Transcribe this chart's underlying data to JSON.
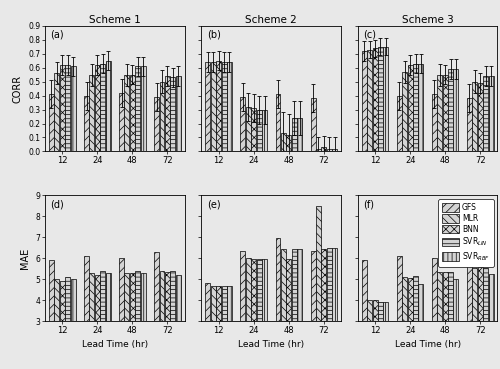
{
  "schemes": [
    "Scheme 1",
    "Scheme 2",
    "Scheme 3"
  ],
  "lead_times": [
    12,
    24,
    48,
    72
  ],
  "methods": [
    "GFS",
    "MLR",
    "BNN",
    "SVR_LIN",
    "SVR_RBF"
  ],
  "corr": {
    "scheme1": [
      [
        0.41,
        0.56,
        0.62,
        0.62,
        0.61
      ],
      [
        0.4,
        0.55,
        0.62,
        0.63,
        0.65
      ],
      [
        0.42,
        0.55,
        0.55,
        0.61,
        0.61
      ],
      [
        0.39,
        0.5,
        0.54,
        0.53,
        0.54
      ]
    ],
    "scheme2": [
      [
        0.64,
        0.64,
        0.65,
        0.64,
        0.64
      ],
      [
        0.39,
        0.32,
        0.31,
        0.3,
        0.3
      ],
      [
        0.41,
        0.13,
        0.12,
        0.24,
        0.24
      ],
      [
        0.38,
        0.02,
        0.03,
        0.02,
        0.02
      ]
    ],
    "scheme3": [
      [
        0.72,
        0.73,
        0.74,
        0.75,
        0.75
      ],
      [
        0.4,
        0.57,
        0.62,
        0.63,
        0.63
      ],
      [
        0.41,
        0.55,
        0.55,
        0.59,
        0.59
      ],
      [
        0.38,
        0.5,
        0.49,
        0.54,
        0.54
      ]
    ]
  },
  "corr_ci": {
    "scheme1": [
      [
        0.1,
        0.08,
        0.07,
        0.07,
        0.07
      ],
      [
        0.1,
        0.08,
        0.07,
        0.07,
        0.07
      ],
      [
        0.1,
        0.08,
        0.07,
        0.07,
        0.07
      ],
      [
        0.1,
        0.08,
        0.07,
        0.07,
        0.07
      ]
    ],
    "scheme2": [
      [
        0.07,
        0.07,
        0.07,
        0.07,
        0.07
      ],
      [
        0.1,
        0.1,
        0.1,
        0.1,
        0.1
      ],
      [
        0.1,
        0.15,
        0.15,
        0.12,
        0.12
      ],
      [
        0.1,
        0.08,
        0.08,
        0.08,
        0.08
      ]
    ],
    "scheme3": [
      [
        0.07,
        0.06,
        0.06,
        0.06,
        0.06
      ],
      [
        0.1,
        0.08,
        0.07,
        0.07,
        0.07
      ],
      [
        0.1,
        0.08,
        0.07,
        0.07,
        0.07
      ],
      [
        0.1,
        0.08,
        0.07,
        0.07,
        0.07
      ]
    ]
  },
  "mae": {
    "scheme1": [
      [
        5.9,
        5.0,
        4.9,
        5.1,
        5.0
      ],
      [
        6.1,
        5.3,
        5.2,
        5.4,
        5.3
      ],
      [
        6.0,
        5.3,
        5.3,
        5.4,
        5.3
      ],
      [
        6.3,
        5.4,
        5.35,
        5.4,
        5.2
      ]
    ],
    "scheme2": [
      [
        4.8,
        4.65,
        4.65,
        4.65,
        4.65
      ],
      [
        6.35,
        6.0,
        5.95,
        5.95,
        5.95
      ],
      [
        6.95,
        6.45,
        5.95,
        6.45,
        6.45
      ],
      [
        6.35,
        8.5,
        6.45,
        6.5,
        6.5
      ]
    ],
    "scheme3": [
      [
        5.9,
        4.0,
        4.0,
        3.9,
        3.9
      ],
      [
        6.1,
        5.1,
        5.05,
        5.15,
        4.75
      ],
      [
        6.0,
        5.35,
        5.35,
        5.35,
        5.0
      ],
      [
        6.3,
        5.55,
        5.6,
        5.55,
        5.25
      ]
    ]
  },
  "ylim_corr": [
    0.0,
    0.9
  ],
  "ylim_mae": [
    3.0,
    9.0
  ],
  "yticks_corr": [
    0.0,
    0.1,
    0.2,
    0.3,
    0.4,
    0.5,
    0.6,
    0.7,
    0.8,
    0.9
  ],
  "yticks_mae": [
    3,
    4,
    5,
    6,
    7,
    8,
    9
  ],
  "panel_labels_top": [
    "(a)",
    "(b)",
    "(c)"
  ],
  "panel_labels_bot": [
    "(d)",
    "(e)",
    "(f)"
  ],
  "scheme_titles": [
    "Scheme 1",
    "Scheme 2",
    "Scheme 3"
  ],
  "xlabel": "Lead Time (hr)",
  "ylabel_corr": "CORR",
  "ylabel_mae": "MAE",
  "legend_labels": [
    "GFS",
    "MLR",
    "BNN",
    "SVR$_{LIN}$",
    "SVR$_{RBF}$"
  ],
  "bg_color": "#e8e8e8",
  "bar_bg_color": "#e8e8e8"
}
